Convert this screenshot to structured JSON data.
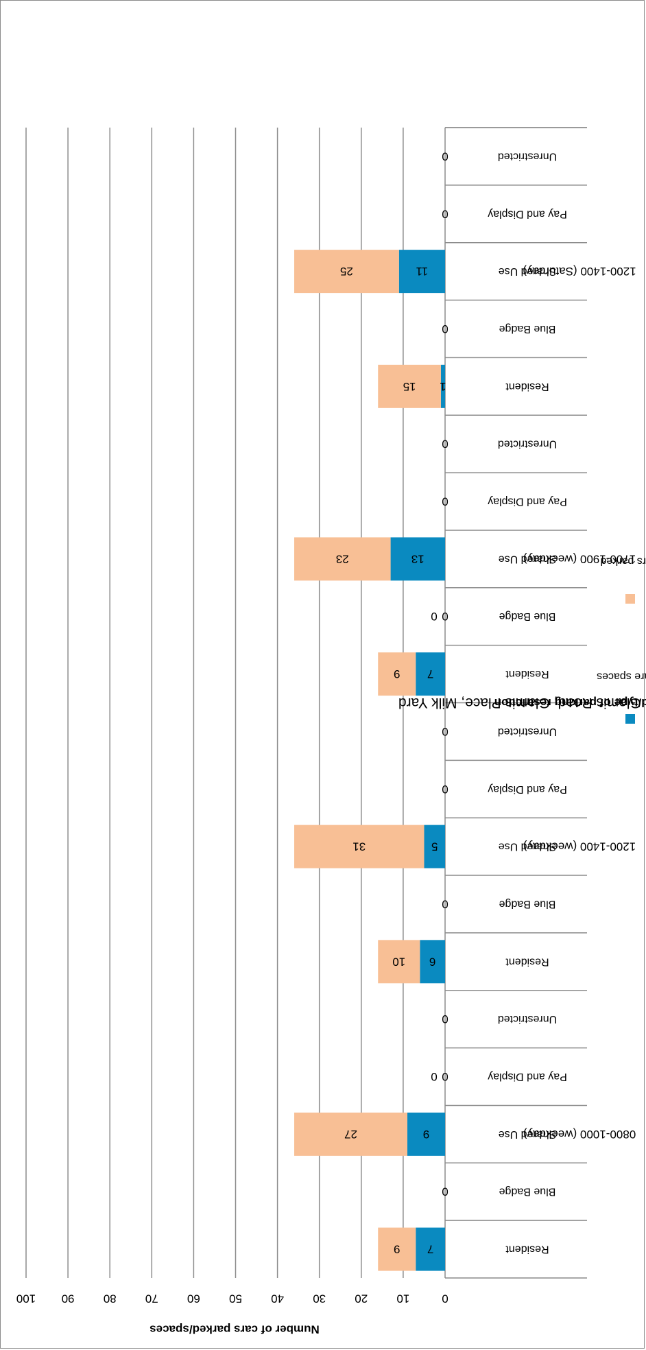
{
  "chart_data": {
    "type": "bar",
    "stacked": true,
    "title": "",
    "xlabel": "Time period/type of parking restriction",
    "xlabel_sub": "Wapping Wall, Monza Street, Glamis Road, Glamis Place, Milk Yard",
    "ylabel": "Number of cars parked/spaces",
    "ylim": [
      0,
      100
    ],
    "yticks": [
      "0",
      "10",
      "20",
      "30",
      "40",
      "50",
      "60",
      "70",
      "80",
      "90",
      "100"
    ],
    "groups": [
      "0800-1000 (weekday)",
      "1200-1400 (weekday)",
      "1700-1900 (weekday)",
      "1200-1400 (Saturday)"
    ],
    "categories": [
      "Resident",
      "Blue Badge",
      "Shared Use",
      "Pay and Display",
      "Unrestricted",
      "Resident",
      "Blue Badge",
      "Shared Use",
      "Pay and Display",
      "Unrestricted",
      "Resident",
      "Blue Badge",
      "Shared Use",
      "Pay and Display",
      "Unrestricted",
      "Resident",
      "Blue Badge",
      "Shared Use",
      "Pay and Display",
      "Unrestricted"
    ],
    "series": [
      {
        "name": "Spare spaces",
        "color": "#0a8ac0",
        "values": [
          7,
          0,
          9,
          0,
          0,
          6,
          0,
          5,
          0,
          0,
          7,
          0,
          13,
          0,
          0,
          1,
          0,
          11,
          0,
          0
        ],
        "labels": [
          "7",
          "0",
          "9",
          "0",
          "0",
          "6",
          "0",
          "5",
          "0",
          "0",
          "7",
          "0",
          "13",
          "0",
          "0",
          "1",
          "0",
          "11",
          "0",
          "0"
        ]
      },
      {
        "name": "Cars parked",
        "color": "#f8bf95",
        "values": [
          9,
          0,
          27,
          0,
          0,
          10,
          0,
          31,
          0,
          0,
          9,
          0,
          23,
          0,
          0,
          15,
          0,
          25,
          0,
          0
        ],
        "labels": [
          "9",
          "",
          "27",
          "0",
          "",
          "10",
          "",
          "31",
          "",
          "",
          "9",
          "0",
          "23",
          "",
          "",
          "15",
          "",
          "25",
          "",
          ""
        ]
      }
    ],
    "grid": true,
    "legend_position": "bottom",
    "orientation": "rotated-180"
  }
}
